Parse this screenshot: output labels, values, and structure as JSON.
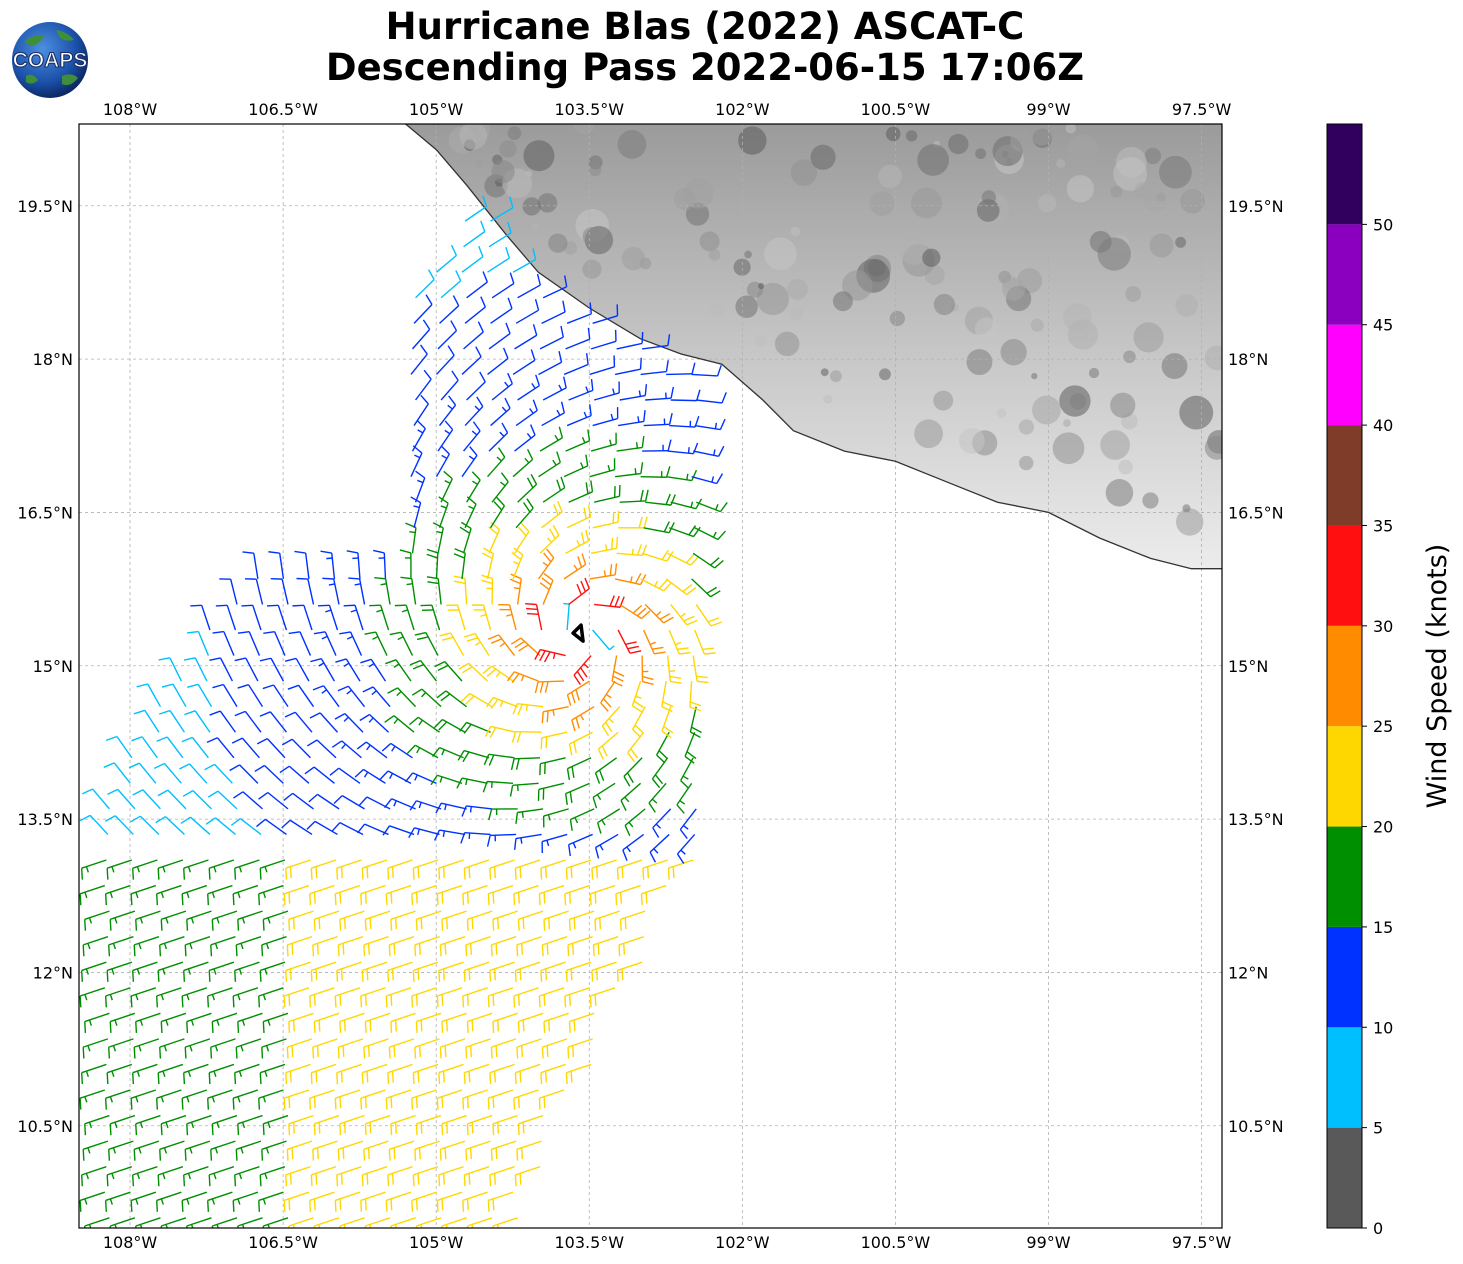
{
  "title": {
    "line1": "Hurricane Blas (2022) ASCAT-C",
    "line2": "Descending Pass 2022-06-15 17:06Z"
  },
  "logo": {
    "text": "COAPS",
    "icon": "globe-logo-icon"
  },
  "map": {
    "lon_range": [
      -108.5,
      -97.3
    ],
    "lat_range": [
      9.5,
      20.3
    ],
    "lon_ticks": [
      {
        "value": -108.0,
        "label": "108°W"
      },
      {
        "value": -106.5,
        "label": "106.5°W"
      },
      {
        "value": -105.0,
        "label": "105°W"
      },
      {
        "value": -103.5,
        "label": "103.5°W"
      },
      {
        "value": -102.0,
        "label": "102°W"
      },
      {
        "value": -100.5,
        "label": "100.5°W"
      },
      {
        "value": -99.0,
        "label": "99°W"
      },
      {
        "value": -97.5,
        "label": "97.5°W"
      }
    ],
    "lat_ticks": [
      {
        "value": 19.5,
        "label": "19.5°N"
      },
      {
        "value": 18.0,
        "label": "18°N"
      },
      {
        "value": 16.5,
        "label": "16.5°N"
      },
      {
        "value": 15.0,
        "label": "15°N"
      },
      {
        "value": 13.5,
        "label": "13.5°N"
      },
      {
        "value": 12.0,
        "label": "12°N"
      },
      {
        "value": 10.5,
        "label": "10.5°N"
      }
    ],
    "storm_center": {
      "lon": -103.6,
      "lat": 15.3
    },
    "coastline": [
      [
        -105.3,
        20.3
      ],
      [
        -105.0,
        20.05
      ],
      [
        -104.7,
        19.7
      ],
      [
        -104.3,
        19.2
      ],
      [
        -104.0,
        18.85
      ],
      [
        -103.5,
        18.5
      ],
      [
        -103.0,
        18.2
      ],
      [
        -102.6,
        18.05
      ],
      [
        -102.2,
        17.95
      ],
      [
        -101.8,
        17.6
      ],
      [
        -101.5,
        17.3
      ],
      [
        -101.0,
        17.1
      ],
      [
        -100.5,
        17.0
      ],
      [
        -100.0,
        16.8
      ],
      [
        -99.5,
        16.6
      ],
      [
        -99.0,
        16.5
      ],
      [
        -98.5,
        16.25
      ],
      [
        -98.0,
        16.05
      ],
      [
        -97.6,
        15.95
      ],
      [
        -97.3,
        15.95
      ]
    ],
    "land_color": "#b8b8b8"
  },
  "colorbar": {
    "title": "Wind Speed (knots)",
    "bins": [
      {
        "from": 0,
        "to": 5,
        "color": "#595959"
      },
      {
        "from": 5,
        "to": 10,
        "color": "#00bfff"
      },
      {
        "from": 10,
        "to": 15,
        "color": "#0032ff"
      },
      {
        "from": 15,
        "to": 20,
        "color": "#008f00"
      },
      {
        "from": 20,
        "to": 25,
        "color": "#ffd700"
      },
      {
        "from": 25,
        "to": 30,
        "color": "#ff8c00"
      },
      {
        "from": 30,
        "to": 35,
        "color": "#ff0f0f"
      },
      {
        "from": 35,
        "to": 40,
        "color": "#7f3c28"
      },
      {
        "from": 40,
        "to": 45,
        "color": "#ff00ff"
      },
      {
        "from": 45,
        "to": 50,
        "color": "#8b00bf"
      },
      {
        "from": 50,
        "to": 55,
        "color": "#31005f"
      }
    ],
    "tick_labels": [
      "0",
      "5",
      "10",
      "15",
      "20",
      "25",
      "30",
      "35",
      "40",
      "45",
      "50"
    ]
  }
}
